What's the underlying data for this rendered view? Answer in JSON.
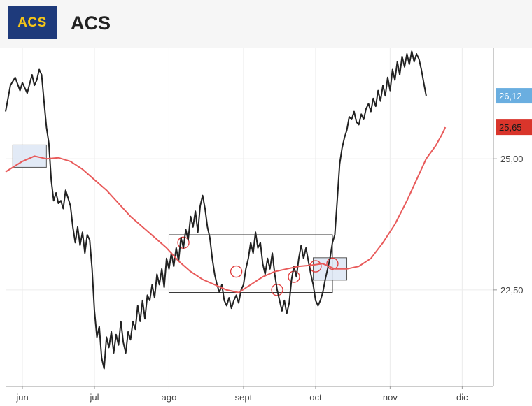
{
  "header": {
    "logo_text": "ACS",
    "company_name": "ACS",
    "logo_bg": "#1e3a7b",
    "logo_fg": "#f5c518"
  },
  "chart_data": {
    "type": "line",
    "title": "",
    "xlabel": "",
    "ylabel": "",
    "x_ticks": [
      {
        "label": "jun",
        "x": 0
      },
      {
        "label": "jul",
        "x": 30
      },
      {
        "label": "ago",
        "x": 61
      },
      {
        "label": "sept",
        "x": 92
      },
      {
        "label": "oct",
        "x": 122
      },
      {
        "label": "nov",
        "x": 153
      },
      {
        "label": "dic",
        "x": 183
      }
    ],
    "y_ticks": [
      {
        "label": "25,00",
        "value": 25.0
      },
      {
        "label": "22,50",
        "value": 22.5
      }
    ],
    "xlim": [
      -7,
      196
    ],
    "ylim": [
      20.66,
      27.12
    ],
    "grid": true,
    "series": [
      {
        "color": "#222222",
        "last_label": "26,12",
        "badge_color": "#6aaee0",
        "points": [
          [
            -7,
            25.9
          ],
          [
            -5,
            26.4
          ],
          [
            -3,
            26.55
          ],
          [
            -1,
            26.3
          ],
          [
            0,
            26.45
          ],
          [
            2,
            26.25
          ],
          [
            4,
            26.6
          ],
          [
            5,
            26.4
          ],
          [
            6,
            26.5
          ],
          [
            7,
            26.7
          ],
          [
            8,
            26.6
          ],
          [
            9,
            26.1
          ],
          [
            10,
            25.6
          ],
          [
            11,
            25.3
          ],
          [
            12,
            24.6
          ],
          [
            13,
            24.2
          ],
          [
            14,
            24.35
          ],
          [
            15,
            24.15
          ],
          [
            16,
            24.2
          ],
          [
            17,
            24.05
          ],
          [
            18,
            24.4
          ],
          [
            19,
            24.25
          ],
          [
            20,
            24.1
          ],
          [
            21,
            23.7
          ],
          [
            22,
            23.4
          ],
          [
            23,
            23.7
          ],
          [
            24,
            23.35
          ],
          [
            25,
            23.6
          ],
          [
            26,
            23.2
          ],
          [
            27,
            23.55
          ],
          [
            28,
            23.45
          ],
          [
            29,
            22.9
          ],
          [
            30,
            22.1
          ],
          [
            31,
            21.6
          ],
          [
            32,
            21.8
          ],
          [
            33,
            21.2
          ],
          [
            34,
            21.0
          ],
          [
            35,
            21.6
          ],
          [
            36,
            21.4
          ],
          [
            37,
            21.7
          ],
          [
            38,
            21.3
          ],
          [
            39,
            21.65
          ],
          [
            40,
            21.45
          ],
          [
            41,
            21.9
          ],
          [
            42,
            21.5
          ],
          [
            43,
            21.3
          ],
          [
            44,
            21.7
          ],
          [
            45,
            21.55
          ],
          [
            46,
            21.9
          ],
          [
            47,
            21.75
          ],
          [
            48,
            22.2
          ],
          [
            49,
            21.9
          ],
          [
            50,
            22.3
          ],
          [
            51,
            21.95
          ],
          [
            52,
            22.4
          ],
          [
            53,
            22.3
          ],
          [
            54,
            22.6
          ],
          [
            55,
            22.35
          ],
          [
            56,
            22.8
          ],
          [
            57,
            22.6
          ],
          [
            58,
            22.9
          ],
          [
            59,
            22.55
          ],
          [
            60,
            23.1
          ],
          [
            61,
            22.9
          ],
          [
            62,
            23.2
          ],
          [
            63,
            22.95
          ],
          [
            64,
            23.3
          ],
          [
            65,
            23.05
          ],
          [
            66,
            23.5
          ],
          [
            67,
            23.3
          ],
          [
            68,
            23.65
          ],
          [
            69,
            23.45
          ],
          [
            70,
            23.9
          ],
          [
            71,
            23.7
          ],
          [
            72,
            24.0
          ],
          [
            73,
            23.6
          ],
          [
            74,
            24.1
          ],
          [
            75,
            24.3
          ],
          [
            76,
            24.05
          ],
          [
            77,
            23.7
          ],
          [
            78,
            23.5
          ],
          [
            79,
            23.1
          ],
          [
            80,
            22.8
          ],
          [
            81,
            22.6
          ],
          [
            82,
            22.45
          ],
          [
            83,
            22.6
          ],
          [
            84,
            22.3
          ],
          [
            85,
            22.2
          ],
          [
            86,
            22.35
          ],
          [
            87,
            22.15
          ],
          [
            88,
            22.3
          ],
          [
            89,
            22.4
          ],
          [
            90,
            22.25
          ],
          [
            91,
            22.5
          ],
          [
            92,
            22.6
          ],
          [
            93,
            22.9
          ],
          [
            94,
            23.1
          ],
          [
            95,
            23.4
          ],
          [
            96,
            23.2
          ],
          [
            97,
            23.6
          ],
          [
            98,
            23.3
          ],
          [
            99,
            23.4
          ],
          [
            100,
            23.0
          ],
          [
            101,
            22.8
          ],
          [
            102,
            23.1
          ],
          [
            103,
            22.9
          ],
          [
            104,
            23.2
          ],
          [
            105,
            22.8
          ],
          [
            106,
            22.5
          ],
          [
            107,
            22.3
          ],
          [
            108,
            22.1
          ],
          [
            109,
            22.3
          ],
          [
            110,
            22.05
          ],
          [
            111,
            22.25
          ],
          [
            112,
            22.7
          ],
          [
            113,
            22.95
          ],
          [
            114,
            22.75
          ],
          [
            115,
            23.1
          ],
          [
            116,
            23.35
          ],
          [
            117,
            23.1
          ],
          [
            118,
            23.3
          ],
          [
            119,
            23.05
          ],
          [
            120,
            22.8
          ],
          [
            121,
            22.6
          ],
          [
            122,
            22.3
          ],
          [
            123,
            22.2
          ],
          [
            124,
            22.3
          ],
          [
            125,
            22.45
          ],
          [
            126,
            22.7
          ],
          [
            127,
            22.9
          ],
          [
            128,
            23.1
          ],
          [
            129,
            23.4
          ],
          [
            130,
            23.55
          ],
          [
            131,
            24.2
          ],
          [
            132,
            24.9
          ],
          [
            133,
            25.2
          ],
          [
            134,
            25.4
          ],
          [
            135,
            25.55
          ],
          [
            136,
            25.8
          ],
          [
            137,
            25.75
          ],
          [
            138,
            25.9
          ],
          [
            139,
            25.7
          ],
          [
            140,
            25.65
          ],
          [
            141,
            25.85
          ],
          [
            142,
            25.75
          ],
          [
            143,
            25.95
          ],
          [
            144,
            26.05
          ],
          [
            145,
            25.9
          ],
          [
            146,
            26.15
          ],
          [
            147,
            26.0
          ],
          [
            148,
            26.3
          ],
          [
            149,
            26.1
          ],
          [
            150,
            26.4
          ],
          [
            151,
            26.2
          ],
          [
            152,
            26.55
          ],
          [
            153,
            26.3
          ],
          [
            154,
            26.7
          ],
          [
            155,
            26.5
          ],
          [
            156,
            26.85
          ],
          [
            157,
            26.6
          ],
          [
            158,
            26.95
          ],
          [
            159,
            26.75
          ],
          [
            160,
            27.0
          ],
          [
            161,
            26.8
          ],
          [
            162,
            27.05
          ],
          [
            163,
            26.85
          ],
          [
            164,
            27.0
          ],
          [
            165,
            26.9
          ],
          [
            166,
            26.7
          ],
          [
            167,
            26.45
          ],
          [
            168,
            26.2
          ]
        ]
      },
      {
        "color": "#e85a5a",
        "last_label": "25,65",
        "badge_color": "#d9352b",
        "points": [
          [
            -7,
            24.75
          ],
          [
            0,
            24.95
          ],
          [
            5,
            25.05
          ],
          [
            10,
            25.0
          ],
          [
            15,
            25.02
          ],
          [
            20,
            24.95
          ],
          [
            25,
            24.8
          ],
          [
            30,
            24.6
          ],
          [
            35,
            24.4
          ],
          [
            40,
            24.15
          ],
          [
            45,
            23.9
          ],
          [
            50,
            23.7
          ],
          [
            55,
            23.5
          ],
          [
            60,
            23.3
          ],
          [
            65,
            23.05
          ],
          [
            70,
            22.85
          ],
          [
            75,
            22.7
          ],
          [
            80,
            22.6
          ],
          [
            85,
            22.5
          ],
          [
            90,
            22.45
          ],
          [
            95,
            22.6
          ],
          [
            100,
            22.75
          ],
          [
            105,
            22.85
          ],
          [
            110,
            22.9
          ],
          [
            115,
            22.95
          ],
          [
            120,
            22.97
          ],
          [
            125,
            23.0
          ],
          [
            130,
            22.9
          ],
          [
            135,
            22.9
          ],
          [
            140,
            22.95
          ],
          [
            145,
            23.1
          ],
          [
            150,
            23.4
          ],
          [
            155,
            23.75
          ],
          [
            160,
            24.2
          ],
          [
            165,
            24.7
          ],
          [
            168,
            25.0
          ],
          [
            172,
            25.25
          ],
          [
            175,
            25.5
          ],
          [
            176,
            25.6
          ]
        ]
      }
    ],
    "annotations": {
      "squares": [
        [
          3,
          25.05
        ],
        [
          128,
          22.9
        ]
      ],
      "rectangle": [
        61,
        22.45,
        129,
        23.55
      ],
      "circles": [
        [
          67,
          23.4
        ],
        [
          89,
          22.85
        ],
        [
          106,
          22.5
        ],
        [
          113,
          22.75
        ],
        [
          122,
          22.95
        ],
        [
          129,
          23.0
        ]
      ]
    }
  }
}
